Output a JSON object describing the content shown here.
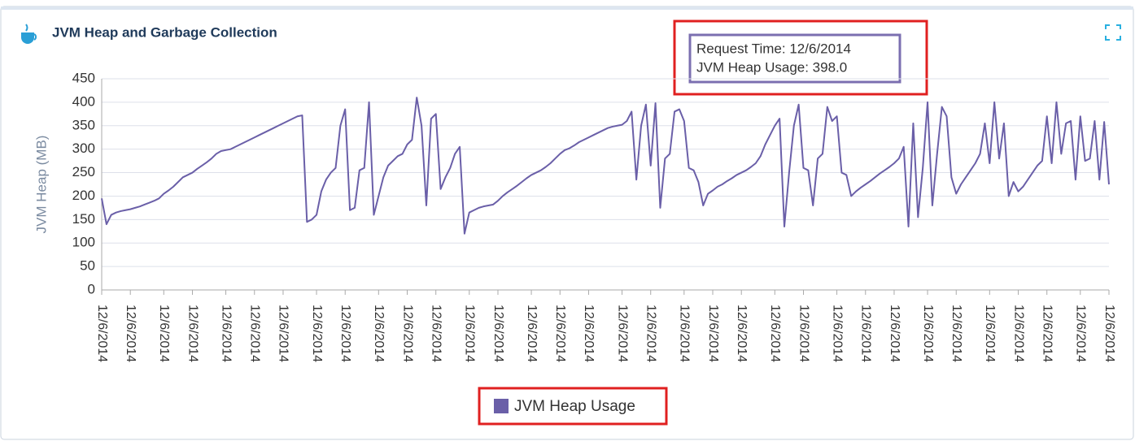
{
  "panel": {
    "title": "JVM Heap and Garbage Collection"
  },
  "tooltip": {
    "lines": [
      "Request Time: 12/6/2014",
      "JVM Heap Usage: 398.0"
    ]
  },
  "chart_data": {
    "type": "line",
    "ylabel": "JVM Heap (MB)",
    "ylim": [
      0,
      450
    ],
    "yticks": [
      0,
      50,
      100,
      150,
      200,
      250,
      300,
      350,
      400,
      450
    ],
    "grid": true,
    "categories": [
      "12/6/2014",
      null,
      null,
      null,
      null,
      null,
      "12/6/2014",
      null,
      null,
      null,
      null,
      null,
      null,
      "12/6/2014",
      null,
      null,
      null,
      null,
      null,
      "12/6/2014",
      null,
      null,
      null,
      null,
      null,
      null,
      "12/6/2014",
      null,
      null,
      null,
      null,
      null,
      "12/6/2014",
      null,
      null,
      null,
      null,
      null,
      "12/6/2014",
      null,
      null,
      null,
      null,
      null,
      null,
      "12/6/2014",
      null,
      null,
      null,
      null,
      null,
      "12/6/2014",
      null,
      null,
      null,
      null,
      null,
      null,
      "12/6/2014",
      null,
      null,
      null,
      null,
      null,
      "12/6/2014",
      null,
      null,
      null,
      null,
      null,
      "12/6/2014",
      null,
      null,
      null,
      null,
      null,
      null,
      "12/6/2014",
      null,
      null,
      null,
      null,
      null,
      "12/6/2014",
      null,
      null,
      null,
      null,
      null,
      null,
      "12/6/2014",
      null,
      null,
      null,
      null,
      null,
      "12/6/2014",
      null,
      null,
      null,
      null,
      null,
      "12/6/2014",
      null,
      null,
      null,
      null,
      null,
      null,
      "12/6/2014",
      null,
      null,
      null,
      null,
      null,
      "12/6/2014",
      null,
      null,
      null,
      null,
      null,
      null,
      "12/6/2014",
      null,
      null,
      null,
      null,
      null,
      "12/6/2014",
      null,
      null,
      null,
      null,
      null,
      "12/6/2014",
      null,
      null,
      null,
      null,
      null,
      null,
      "12/6/2014",
      null,
      null,
      null,
      null,
      null,
      "12/6/2014",
      null,
      null,
      null,
      null,
      null,
      null,
      "12/6/2014",
      null,
      null,
      null,
      null,
      null,
      "12/6/2014",
      null,
      null,
      null,
      null,
      null,
      "12/6/2014",
      null,
      null,
      null,
      null,
      null,
      null,
      "12/6/2014",
      null,
      null,
      null,
      null,
      null,
      "12/6/2014",
      null,
      null,
      null,
      null,
      null,
      null,
      "12/6/2014",
      null,
      null,
      null,
      null,
      null,
      "12/6/2014",
      null,
      null,
      null,
      null,
      null,
      "12/6/2014",
      null,
      null,
      null,
      null,
      null,
      null,
      "12/6/2014",
      null,
      null,
      null,
      null,
      null,
      "12/6/2014"
    ],
    "series": [
      {
        "name": "JVM Heap Usage",
        "color": "#6a5fa8",
        "values": [
          195,
          140,
          160,
          165,
          168,
          170,
          172,
          175,
          178,
          182,
          186,
          190,
          195,
          205,
          212,
          220,
          230,
          240,
          245,
          250,
          258,
          265,
          272,
          280,
          290,
          296,
          298,
          300,
          305,
          310,
          315,
          320,
          325,
          330,
          335,
          340,
          345,
          350,
          355,
          360,
          365,
          370,
          372,
          145,
          150,
          160,
          210,
          235,
          250,
          260,
          350,
          385,
          170,
          175,
          255,
          260,
          400,
          160,
          200,
          240,
          265,
          275,
          285,
          290,
          310,
          320,
          410,
          350,
          180,
          365,
          375,
          215,
          240,
          260,
          290,
          305,
          120,
          165,
          170,
          175,
          178,
          180,
          182,
          190,
          200,
          208,
          215,
          222,
          230,
          238,
          245,
          250,
          255,
          262,
          270,
          280,
          290,
          298,
          302,
          308,
          315,
          320,
          325,
          330,
          335,
          340,
          345,
          348,
          350,
          352,
          360,
          380,
          235,
          350,
          395,
          265,
          398,
          175,
          280,
          290,
          380,
          385,
          360,
          260,
          255,
          230,
          180,
          205,
          212,
          220,
          225,
          232,
          238,
          245,
          250,
          255,
          262,
          270,
          285,
          310,
          330,
          350,
          365,
          135,
          250,
          350,
          395,
          260,
          255,
          180,
          280,
          290,
          390,
          360,
          370,
          250,
          245,
          200,
          210,
          218,
          225,
          232,
          240,
          248,
          255,
          262,
          270,
          280,
          305,
          135,
          355,
          155,
          260,
          400,
          180,
          290,
          390,
          370,
          240,
          205,
          225,
          240,
          255,
          270,
          290,
          355,
          270,
          400,
          280,
          355,
          200,
          230,
          210,
          220,
          235,
          250,
          265,
          275,
          370,
          270,
          400,
          290,
          355,
          360,
          235,
          370,
          275,
          280,
          360,
          235,
          358,
          225
        ]
      }
    ]
  }
}
